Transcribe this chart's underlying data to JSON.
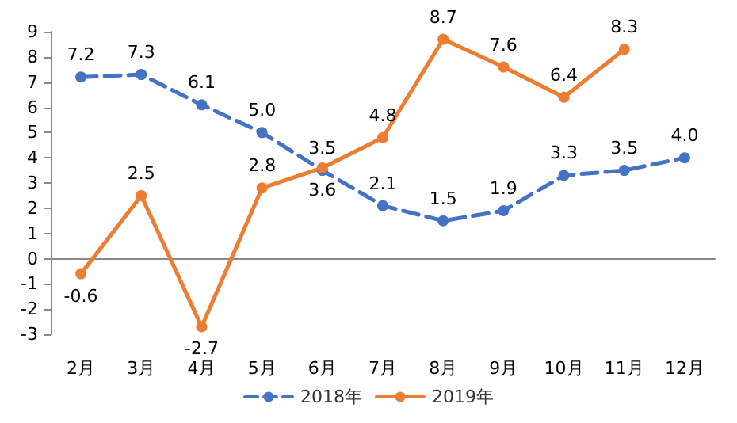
{
  "chart_data": {
    "type": "line",
    "categories": [
      "2月",
      "3月",
      "4月",
      "5月",
      "6月",
      "7月",
      "8月",
      "9月",
      "10月",
      "11月",
      "12月"
    ],
    "series": [
      {
        "name": "2018年",
        "color": "#4472c4",
        "line_style": "dashed",
        "values": [
          7.2,
          7.3,
          6.1,
          5.0,
          3.5,
          2.1,
          1.5,
          1.9,
          3.3,
          3.5,
          4.0
        ],
        "value_labels": [
          "7.2",
          "7.3",
          "6.1",
          "5.0",
          "3.5",
          "2.1",
          "1.5",
          "1.9",
          "3.3",
          "3.5",
          "4.0"
        ]
      },
      {
        "name": "2019年",
        "color": "#ed7d31",
        "line_style": "solid",
        "values": [
          -0.6,
          2.5,
          -2.7,
          2.8,
          3.6,
          4.8,
          8.7,
          7.6,
          6.4,
          8.3,
          null
        ],
        "value_labels": [
          "-0.6",
          "2.5",
          "-2.7",
          "2.8",
          "3.6",
          "4.8",
          "8.7",
          "7.6",
          "6.4",
          "8.3",
          null
        ]
      }
    ],
    "ylim": [
      -3,
      9
    ],
    "yticks": [
      -3,
      -2,
      -1,
      0,
      1,
      2,
      3,
      4,
      5,
      6,
      7,
      8,
      9
    ],
    "legend": "bottom",
    "marker": "circle"
  }
}
